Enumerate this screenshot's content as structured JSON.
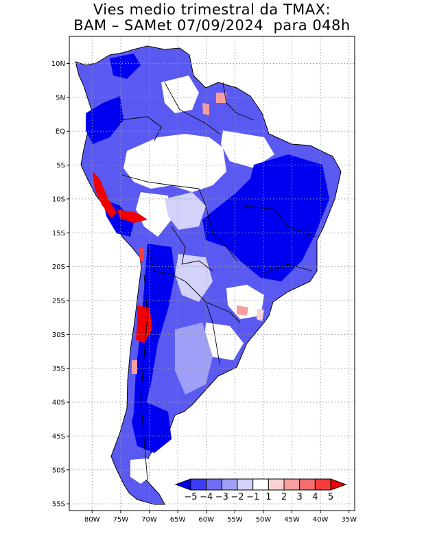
{
  "title": {
    "line1": "Vies medio trimestral da TMAX:",
    "line2": "BAM – SAMet 07/09/2024  para 048h"
  },
  "map": {
    "lon_range": [
      -84,
      -34
    ],
    "lat_range": [
      -56,
      14
    ],
    "grid": true,
    "lon_ticks": [
      {
        "v": -80,
        "label": "80W"
      },
      {
        "v": -75,
        "label": "75W"
      },
      {
        "v": -70,
        "label": "70W"
      },
      {
        "v": -65,
        "label": "65W"
      },
      {
        "v": -60,
        "label": "60W"
      },
      {
        "v": -55,
        "label": "55W"
      },
      {
        "v": -50,
        "label": "50W"
      },
      {
        "v": -45,
        "label": "45W"
      },
      {
        "v": -40,
        "label": "40W"
      },
      {
        "v": -35,
        "label": "35W"
      }
    ],
    "lat_ticks": [
      {
        "v": 10,
        "label": "10N"
      },
      {
        "v": 5,
        "label": "5N"
      },
      {
        "v": 0,
        "label": "EQ"
      },
      {
        "v": -5,
        "label": "5S"
      },
      {
        "v": -10,
        "label": "10S"
      },
      {
        "v": -15,
        "label": "15S"
      },
      {
        "v": -20,
        "label": "20S"
      },
      {
        "v": -25,
        "label": "25S"
      },
      {
        "v": -30,
        "label": "30S"
      },
      {
        "v": -35,
        "label": "35S"
      },
      {
        "v": -40,
        "label": "40S"
      },
      {
        "v": -45,
        "label": "45S"
      },
      {
        "v": -50,
        "label": "50S"
      },
      {
        "v": -55,
        "label": "55S"
      }
    ]
  },
  "colorbar": {
    "colors": [
      "#0000f0",
      "#3c3cf5",
      "#6e6ef5",
      "#9f9ff7",
      "#d2d2fa",
      "#ffffff",
      "#fad2d2",
      "#f79f9f",
      "#f56e6e",
      "#f53c3c",
      "#f00000"
    ],
    "labels": [
      "−5",
      "−4",
      "−3",
      "−2",
      "−1",
      "1",
      "2",
      "3",
      "4",
      "5"
    ]
  }
}
